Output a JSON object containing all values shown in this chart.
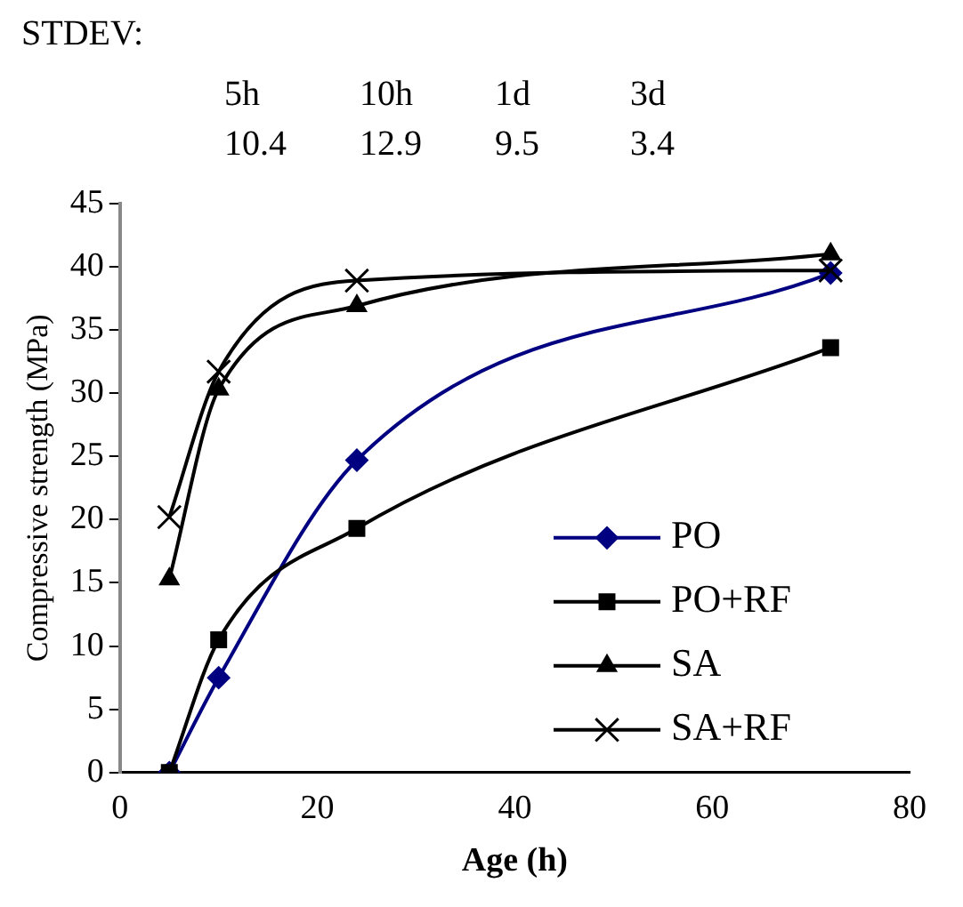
{
  "chart_data": {
    "type": "line",
    "xlabel": "Age (h)",
    "ylabel": "Compressive strength (MPa)",
    "annotations": [
      "STDEV:",
      "5h",
      "10h",
      "1d",
      "3d",
      "10.4",
      "12.9",
      "9.5",
      "3.4"
    ],
    "x": [
      5,
      10,
      24,
      72
    ],
    "series": [
      {
        "name": "PO",
        "color": "#000080",
        "marker": "diamond",
        "values": [
          0,
          7.5,
          24.7,
          39.5
        ]
      },
      {
        "name": "PO+RF",
        "color": "#000000",
        "marker": "square",
        "values": [
          0,
          10.5,
          19.3,
          33.6
        ]
      },
      {
        "name": "SA",
        "color": "#000000",
        "marker": "triangle",
        "values": [
          15.3,
          30.3,
          36.9,
          41
        ]
      },
      {
        "name": "SA+RF",
        "color": "#000000",
        "marker": "cross",
        "values": [
          20.2,
          31.7,
          38.9,
          39.7
        ]
      }
    ],
    "xlim": [
      0,
      80
    ],
    "xticks": [
      0,
      20,
      40,
      60,
      80
    ],
    "ylim": [
      0,
      45
    ],
    "yticks": [
      0,
      5,
      10,
      15,
      20,
      25,
      30,
      35,
      40,
      45
    ],
    "grid": false,
    "legend": "bottom right",
    "line_style": "solid"
  }
}
